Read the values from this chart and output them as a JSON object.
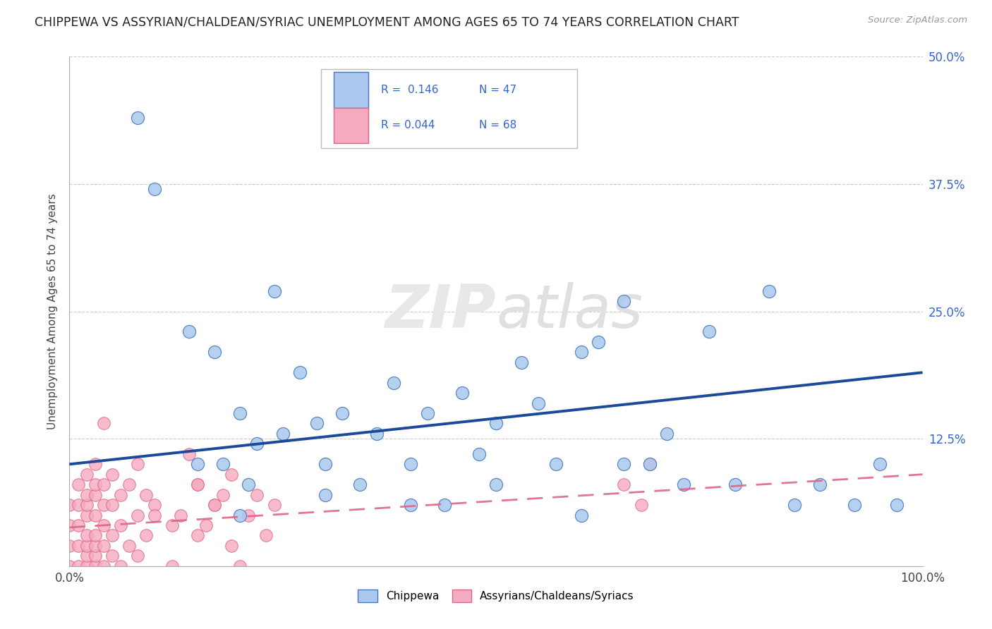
{
  "title": "CHIPPEWA VS ASSYRIAN/CHALDEAN/SYRIAC UNEMPLOYMENT AMONG AGES 65 TO 74 YEARS CORRELATION CHART",
  "source_text": "Source: ZipAtlas.com",
  "ylabel": "Unemployment Among Ages 65 to 74 years",
  "xlim": [
    0,
    1.0
  ],
  "ylim": [
    0,
    0.5
  ],
  "xticks": [
    0.0,
    0.25,
    0.5,
    0.75,
    1.0
  ],
  "xticklabels": [
    "0.0%",
    "",
    "",
    "",
    "100.0%"
  ],
  "ytick_positions": [
    0.0,
    0.125,
    0.25,
    0.375,
    0.5
  ],
  "yticklabels": [
    "",
    "12.5%",
    "25.0%",
    "37.5%",
    "50.0%"
  ],
  "watermark": "ZIPatlas",
  "chippewa_color": "#aac8ee",
  "assyrian_color": "#f5aabf",
  "chippewa_edge": "#4477bb",
  "assyrian_edge": "#dd6688",
  "trendline_chippewa_color": "#1a4a99",
  "trendline_assyrian_color": "#dd6688",
  "chippewa_x": [
    0.08,
    0.1,
    0.14,
    0.17,
    0.18,
    0.2,
    0.21,
    0.22,
    0.24,
    0.27,
    0.29,
    0.3,
    0.32,
    0.34,
    0.36,
    0.38,
    0.4,
    0.42,
    0.44,
    0.46,
    0.48,
    0.5,
    0.53,
    0.55,
    0.57,
    0.6,
    0.62,
    0.65,
    0.68,
    0.7,
    0.72,
    0.75,
    0.78,
    0.82,
    0.85,
    0.88,
    0.92,
    0.95,
    0.97,
    0.5,
    0.6,
    0.65,
    0.4,
    0.3,
    0.2,
    0.15,
    0.25
  ],
  "chippewa_y": [
    0.44,
    0.37,
    0.23,
    0.21,
    0.1,
    0.15,
    0.08,
    0.12,
    0.27,
    0.19,
    0.14,
    0.1,
    0.15,
    0.08,
    0.13,
    0.18,
    0.1,
    0.15,
    0.06,
    0.17,
    0.11,
    0.14,
    0.2,
    0.16,
    0.1,
    0.21,
    0.22,
    0.26,
    0.1,
    0.13,
    0.08,
    0.23,
    0.08,
    0.27,
    0.06,
    0.08,
    0.06,
    0.1,
    0.06,
    0.08,
    0.05,
    0.1,
    0.06,
    0.07,
    0.05,
    0.1,
    0.13
  ],
  "assyrian_x": [
    0.0,
    0.0,
    0.0,
    0.0,
    0.01,
    0.01,
    0.01,
    0.01,
    0.01,
    0.02,
    0.02,
    0.02,
    0.02,
    0.02,
    0.02,
    0.02,
    0.02,
    0.03,
    0.03,
    0.03,
    0.03,
    0.03,
    0.03,
    0.03,
    0.03,
    0.04,
    0.04,
    0.04,
    0.04,
    0.04,
    0.04,
    0.05,
    0.05,
    0.05,
    0.05,
    0.06,
    0.06,
    0.06,
    0.07,
    0.07,
    0.08,
    0.08,
    0.08,
    0.09,
    0.1,
    0.12,
    0.13,
    0.15,
    0.16,
    0.18,
    0.19,
    0.19,
    0.2,
    0.21,
    0.22,
    0.23,
    0.24,
    0.15,
    0.17,
    0.12,
    0.09,
    0.1,
    0.15,
    0.17,
    0.65,
    0.67,
    0.68,
    0.14
  ],
  "assyrian_y": [
    0.0,
    0.02,
    0.04,
    0.06,
    0.0,
    0.02,
    0.04,
    0.06,
    0.08,
    0.0,
    0.01,
    0.02,
    0.03,
    0.05,
    0.06,
    0.07,
    0.09,
    0.0,
    0.01,
    0.02,
    0.03,
    0.05,
    0.07,
    0.08,
    0.1,
    0.0,
    0.02,
    0.04,
    0.06,
    0.08,
    0.14,
    0.01,
    0.03,
    0.06,
    0.09,
    0.0,
    0.04,
    0.07,
    0.02,
    0.08,
    0.01,
    0.05,
    0.1,
    0.03,
    0.06,
    0.0,
    0.05,
    0.08,
    0.04,
    0.07,
    0.02,
    0.09,
    0.0,
    0.05,
    0.07,
    0.03,
    0.06,
    0.03,
    0.06,
    0.04,
    0.07,
    0.05,
    0.08,
    0.06,
    0.08,
    0.06,
    0.1,
    0.11
  ]
}
